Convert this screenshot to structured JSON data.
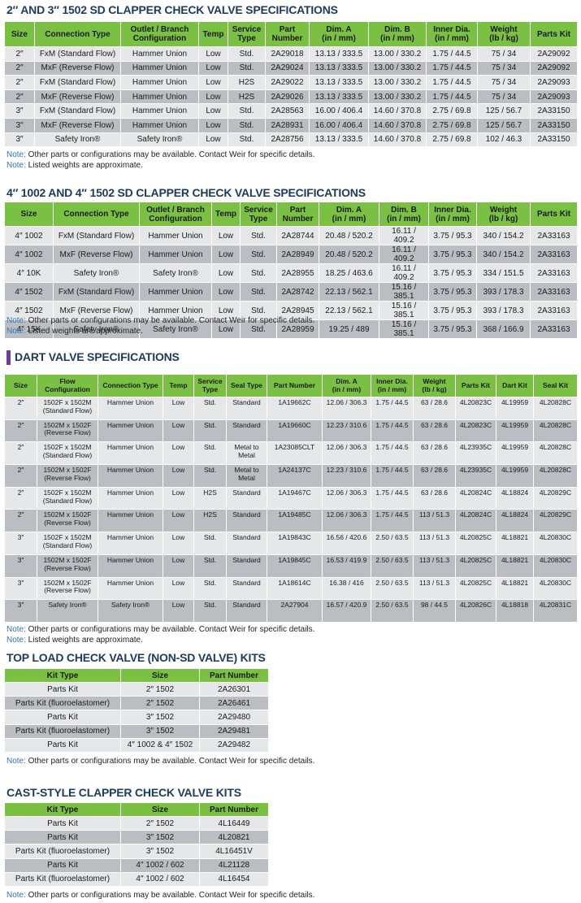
{
  "sections": [
    {
      "title": "2″ AND 3″ 1502 SD CLAPPER CHECK VALVE SPECIFICATIONS",
      "headers": [
        "Size",
        "Connection Type",
        "Outlet / Branch\nConfiguration",
        "Temp",
        "Service\nType",
        "Part\nNumber",
        "Dim. A\n(in / mm)",
        "Dim. B\n(in / mm)",
        "Inner Dia.\n(in / mm)",
        "Weight\n(lb / kg)",
        "Parts Kit"
      ],
      "rows": [
        [
          "2″",
          "FxM (Standard Flow)",
          "Hammer Union",
          "Low",
          "Std.",
          "2A29018",
          "13.13 / 333.5",
          "13.00 / 330.2",
          "1.75 / 44.5",
          "75 / 34",
          "2A29092"
        ],
        [
          "2″",
          "MxF (Reverse Flow)",
          "Hammer Union",
          "Low",
          "Std.",
          "2A29024",
          "13.13 / 333.5",
          "13.00 / 330.2",
          "1.75 / 44.5",
          "75 / 34",
          "2A29092"
        ],
        [
          "2″",
          "FxM (Standard Flow)",
          "Hammer Union",
          "Low",
          "H2S",
          "2A29022",
          "13.13 / 333.5",
          "13.00 / 330.2",
          "1.75 / 44.5",
          "75 / 34",
          "2A29093"
        ],
        [
          "2″",
          "MxF (Reverse Flow)",
          "Hammer Union",
          "Low",
          "H2S",
          "2A29026",
          "13.13 / 333.5",
          "13.00 / 330.2",
          "1.75 / 44.5",
          "75 / 34",
          "2A29093"
        ],
        [
          "3″",
          "FxM (Standard Flow)",
          "Hammer Union",
          "Low",
          "Std.",
          "2A28563",
          "16.00 / 406.4",
          "14.60 / 370.8",
          "2.75 / 69.8",
          "125 / 56.7",
          "2A33150"
        ],
        [
          "3″",
          "MxF (Reverse Flow)",
          "Hammer Union",
          "Low",
          "Std.",
          "2A28931",
          "16.00 / 406.4",
          "14.60 / 370.8",
          "2.75 / 69.8",
          "125 / 56.7",
          "2A33150"
        ],
        [
          "3″",
          "Safety Iron®",
          "Safety Iron®",
          "Low",
          "Std.",
          "2A28756",
          "13.13 / 333.5",
          "14.60 / 370.8",
          "2.75 / 69.8",
          "102 / 46.3",
          "2A33150"
        ]
      ],
      "notes": [
        {
          "label": "Note:",
          "text": " Other parts or configurations may be available. Contact Weir for specific details."
        },
        {
          "label": "Note:",
          "text": " Listed weights are approximate."
        }
      ]
    },
    {
      "title": "4″ 1002 AND 4″ 1502 SD CLAPPER CHECK VALVE SPECIFICATIONS",
      "headers": [
        "Size",
        "Connection Type",
        "Outlet / Branch\nConfiguration",
        "Temp",
        "Service\nType",
        "Part\nNumber",
        "Dim. A\n(in / mm)",
        "Dim. B\n(in / mm)",
        "Inner Dia.\n(in / mm)",
        "Weight\n(lb / kg)",
        "Parts Kit"
      ],
      "rows": [
        [
          "4″ 1002",
          "FxM (Standard Flow)",
          "Hammer Union",
          "Low",
          "Std.",
          "2A28744",
          "20.48 / 520.2",
          "16.11 / 409.2",
          "3.75 / 95.3",
          "340 / 154.2",
          "2A33163"
        ],
        [
          "4″ 1002",
          "MxF (Reverse Flow)",
          "Hammer Union",
          "Low",
          "Std.",
          "2A28949",
          "20.48 / 520.2",
          "16.11 / 409.2",
          "3.75 / 95.3",
          "340 / 154.2",
          "2A33163"
        ],
        [
          "4″ 10K",
          "Safety Iron®",
          "Safety Iron®",
          "Low",
          "Std.",
          "2A28955",
          "18.25 / 463.6",
          "16.11 / 409.2",
          "3.75 / 95.3",
          "334 / 151.5",
          "2A33163"
        ],
        [
          "4″ 1502",
          "FxM (Standard Flow)",
          "Hammer Union",
          "Low",
          "Std.",
          "2A28742",
          "22.13 / 562.1",
          "15.16 / 385.1",
          "3.75 / 95.3",
          "393 / 178.3",
          "2A33163"
        ],
        [
          "4″ 1502",
          "MxF (Reverse Flow)",
          "Hammer Union",
          "Low",
          "Std.",
          "2A28945",
          "22.13 / 562.1",
          "15.16 / 385.1",
          "3.75 / 95.3",
          "393 / 178.3",
          "2A33163"
        ],
        [
          "4″ 15K",
          "Safety Iron®",
          "Safety Iron®",
          "Low",
          "Std.",
          "2A28959",
          "19.25 / 489",
          "15.16 / 385.1",
          "3.75 / 95.3",
          "368 / 166.9",
          "2A33163"
        ]
      ],
      "notes": [
        {
          "label": "Note:",
          "text": " Other parts or configurations may be available. Contact Weir for specific details."
        },
        {
          "label": "Note:",
          "text": " Listed weights are approximate."
        }
      ]
    },
    {
      "title": "DART VALVE SPECIFICATIONS",
      "headers": [
        "Size",
        "Flow\nConfiguration",
        "Connection Type",
        "Temp",
        "Service\nType",
        "Seal Type",
        "Part Number",
        "Dim. A\n(in / mm)",
        "Inner Dia.\n(in / mm)",
        "Weight\n(lb / kg)",
        "Parts Kit",
        "Dart Kit",
        "Seal Kit"
      ],
      "rows": [
        [
          "2″",
          "1502F x 1502M\n(Standard Flow)",
          "Hammer Union",
          "Low",
          "Std.",
          "Standard",
          "1A19662C",
          "12.06 / 306.3",
          "1.75 / 44.5",
          "63 / 28.6",
          "4L20823C",
          "4L19959",
          "4L20828C"
        ],
        [
          "2″",
          "1502M x 1502F\n(Reverse Flow)",
          "Hammer Union",
          "Low",
          "Std.",
          "Standard",
          "1A19660C",
          "12.23 / 310.6",
          "1.75 / 44.5",
          "63 / 28.6",
          "4L20823C",
          "4L19959",
          "4L20828C"
        ],
        [
          "2″",
          "1502F x 1502M\n(Standard Flow)",
          "Hammer Union",
          "Low",
          "Std.",
          "Metal to\nMetal",
          "1A23085CLT",
          "12.06 / 306.3",
          "1.75 / 44.5",
          "63 / 28.6",
          "4L23935C",
          "4L19959",
          "4L20828C"
        ],
        [
          "2″",
          "1502M x 1502F\n(Reverse Flow)",
          "Hammer Union",
          "Low",
          "Std.",
          "Metal to\nMetal",
          "1A24137C",
          "12.23 / 310.6",
          "1.75 / 44.5",
          "63 / 28.6",
          "4L23935C",
          "4L19959",
          "4L20828C"
        ],
        [
          "2″",
          "1502F x 1502M\n(Standard Flow)",
          "Hammer Union",
          "Low",
          "H2S",
          "Standard",
          "1A19467C",
          "12.06 / 306.3",
          "1.75 / 44.5",
          "63 / 28.6",
          "4L20824C",
          "4L18824",
          "4L20829C"
        ],
        [
          "2″",
          "1502M x 1502F\n(Reverse Flow)",
          "Hammer Union",
          "Low",
          "H2S",
          "Standard",
          "1A19485C",
          "12.06 / 306.3",
          "1.75 / 44.5",
          "113 / 51.3",
          "4L20824C",
          "4L18824",
          "4L20829C"
        ],
        [
          "3″",
          "1502F x 1502M\n(Standard Flow)",
          "Hammer Union",
          "Low",
          "Std.",
          "Standard",
          "1A19843C",
          "16.56 / 420.6",
          "2.50 / 63.5",
          "113 / 51.3",
          "4L20825C",
          "4L18821",
          "4L20830C"
        ],
        [
          "3″",
          "1502M x 1502F\n(Reverse Flow)",
          "Hammer Union",
          "Low",
          "Std.",
          "Standard",
          "1A19845C",
          "16.53 / 419.9",
          "2.50 / 63.5",
          "113 / 51.3",
          "4L20825C",
          "4L18821",
          "4L20830C"
        ],
        [
          "3″",
          "1502M x 1502F\n(Reverse Flow)",
          "Hammer Union",
          "Low",
          "Std.",
          "Standard",
          "1A18614C",
          "16.38 / 416",
          "2.50 / 63.5",
          "113 / 51.3",
          "4L20825C",
          "4L18821",
          "4L20830C"
        ],
        [
          "3″",
          "Safety Iron®",
          "Safety Iron®",
          "Low",
          "Std.",
          "Standard",
          "2A27904",
          "16.57 / 420.9",
          "2.50 / 63.5",
          "98 / 44.5",
          "4L20826C",
          "4L18818",
          "4L20831C"
        ]
      ],
      "notes": [
        {
          "label": "Note:",
          "text": " Other parts or configurations may be available. Contact Weir for specific details."
        },
        {
          "label": "Note:",
          "text": " Listed weights are approximate."
        }
      ]
    },
    {
      "title": "TOP LOAD CHECK VALVE (NON-SD VALVE) KITS",
      "headers": [
        "Kit Type",
        "Size",
        "Part Number"
      ],
      "rows": [
        [
          "Parts Kit",
          "2″ 1502",
          "2A26301"
        ],
        [
          "Parts Kit (fluoroelastomer)",
          "2″ 1502",
          "2A26461"
        ],
        [
          "Parts Kit",
          "3″ 1502",
          "2A29480"
        ],
        [
          "Parts Kit (fluoroelastomer)",
          "3″ 1502",
          "2A29481"
        ],
        [
          "Parts Kit",
          "4″ 1002 & 4″ 1502",
          "2A29482"
        ]
      ],
      "notes": [
        {
          "label": "Note:",
          "text": " Other parts or configurations may be available. Contact Weir for specific details."
        }
      ]
    },
    {
      "title": "CAST-STYLE CLAPPER CHECK VALVE KITS",
      "headers": [
        "Kit Type",
        "Size",
        "Part Number"
      ],
      "rows": [
        [
          "Parts Kit",
          "2″ 1502",
          "4L16449"
        ],
        [
          "Parts Kit",
          "3″ 1502",
          "4L20821"
        ],
        [
          "Parts Kit (fluoroelastomer)",
          "3″ 1502",
          "4L16451V"
        ],
        [
          "Parts Kit",
          "4″ 1002 / 602",
          "4L21128"
        ],
        [
          "Parts Kit (fluoroelastomer)",
          "4″ 1002 / 602",
          "4L16454"
        ]
      ],
      "notes": [
        {
          "label": "Note:",
          "text": " Other parts or configurations may be available. Contact Weir for specific details."
        }
      ]
    }
  ]
}
